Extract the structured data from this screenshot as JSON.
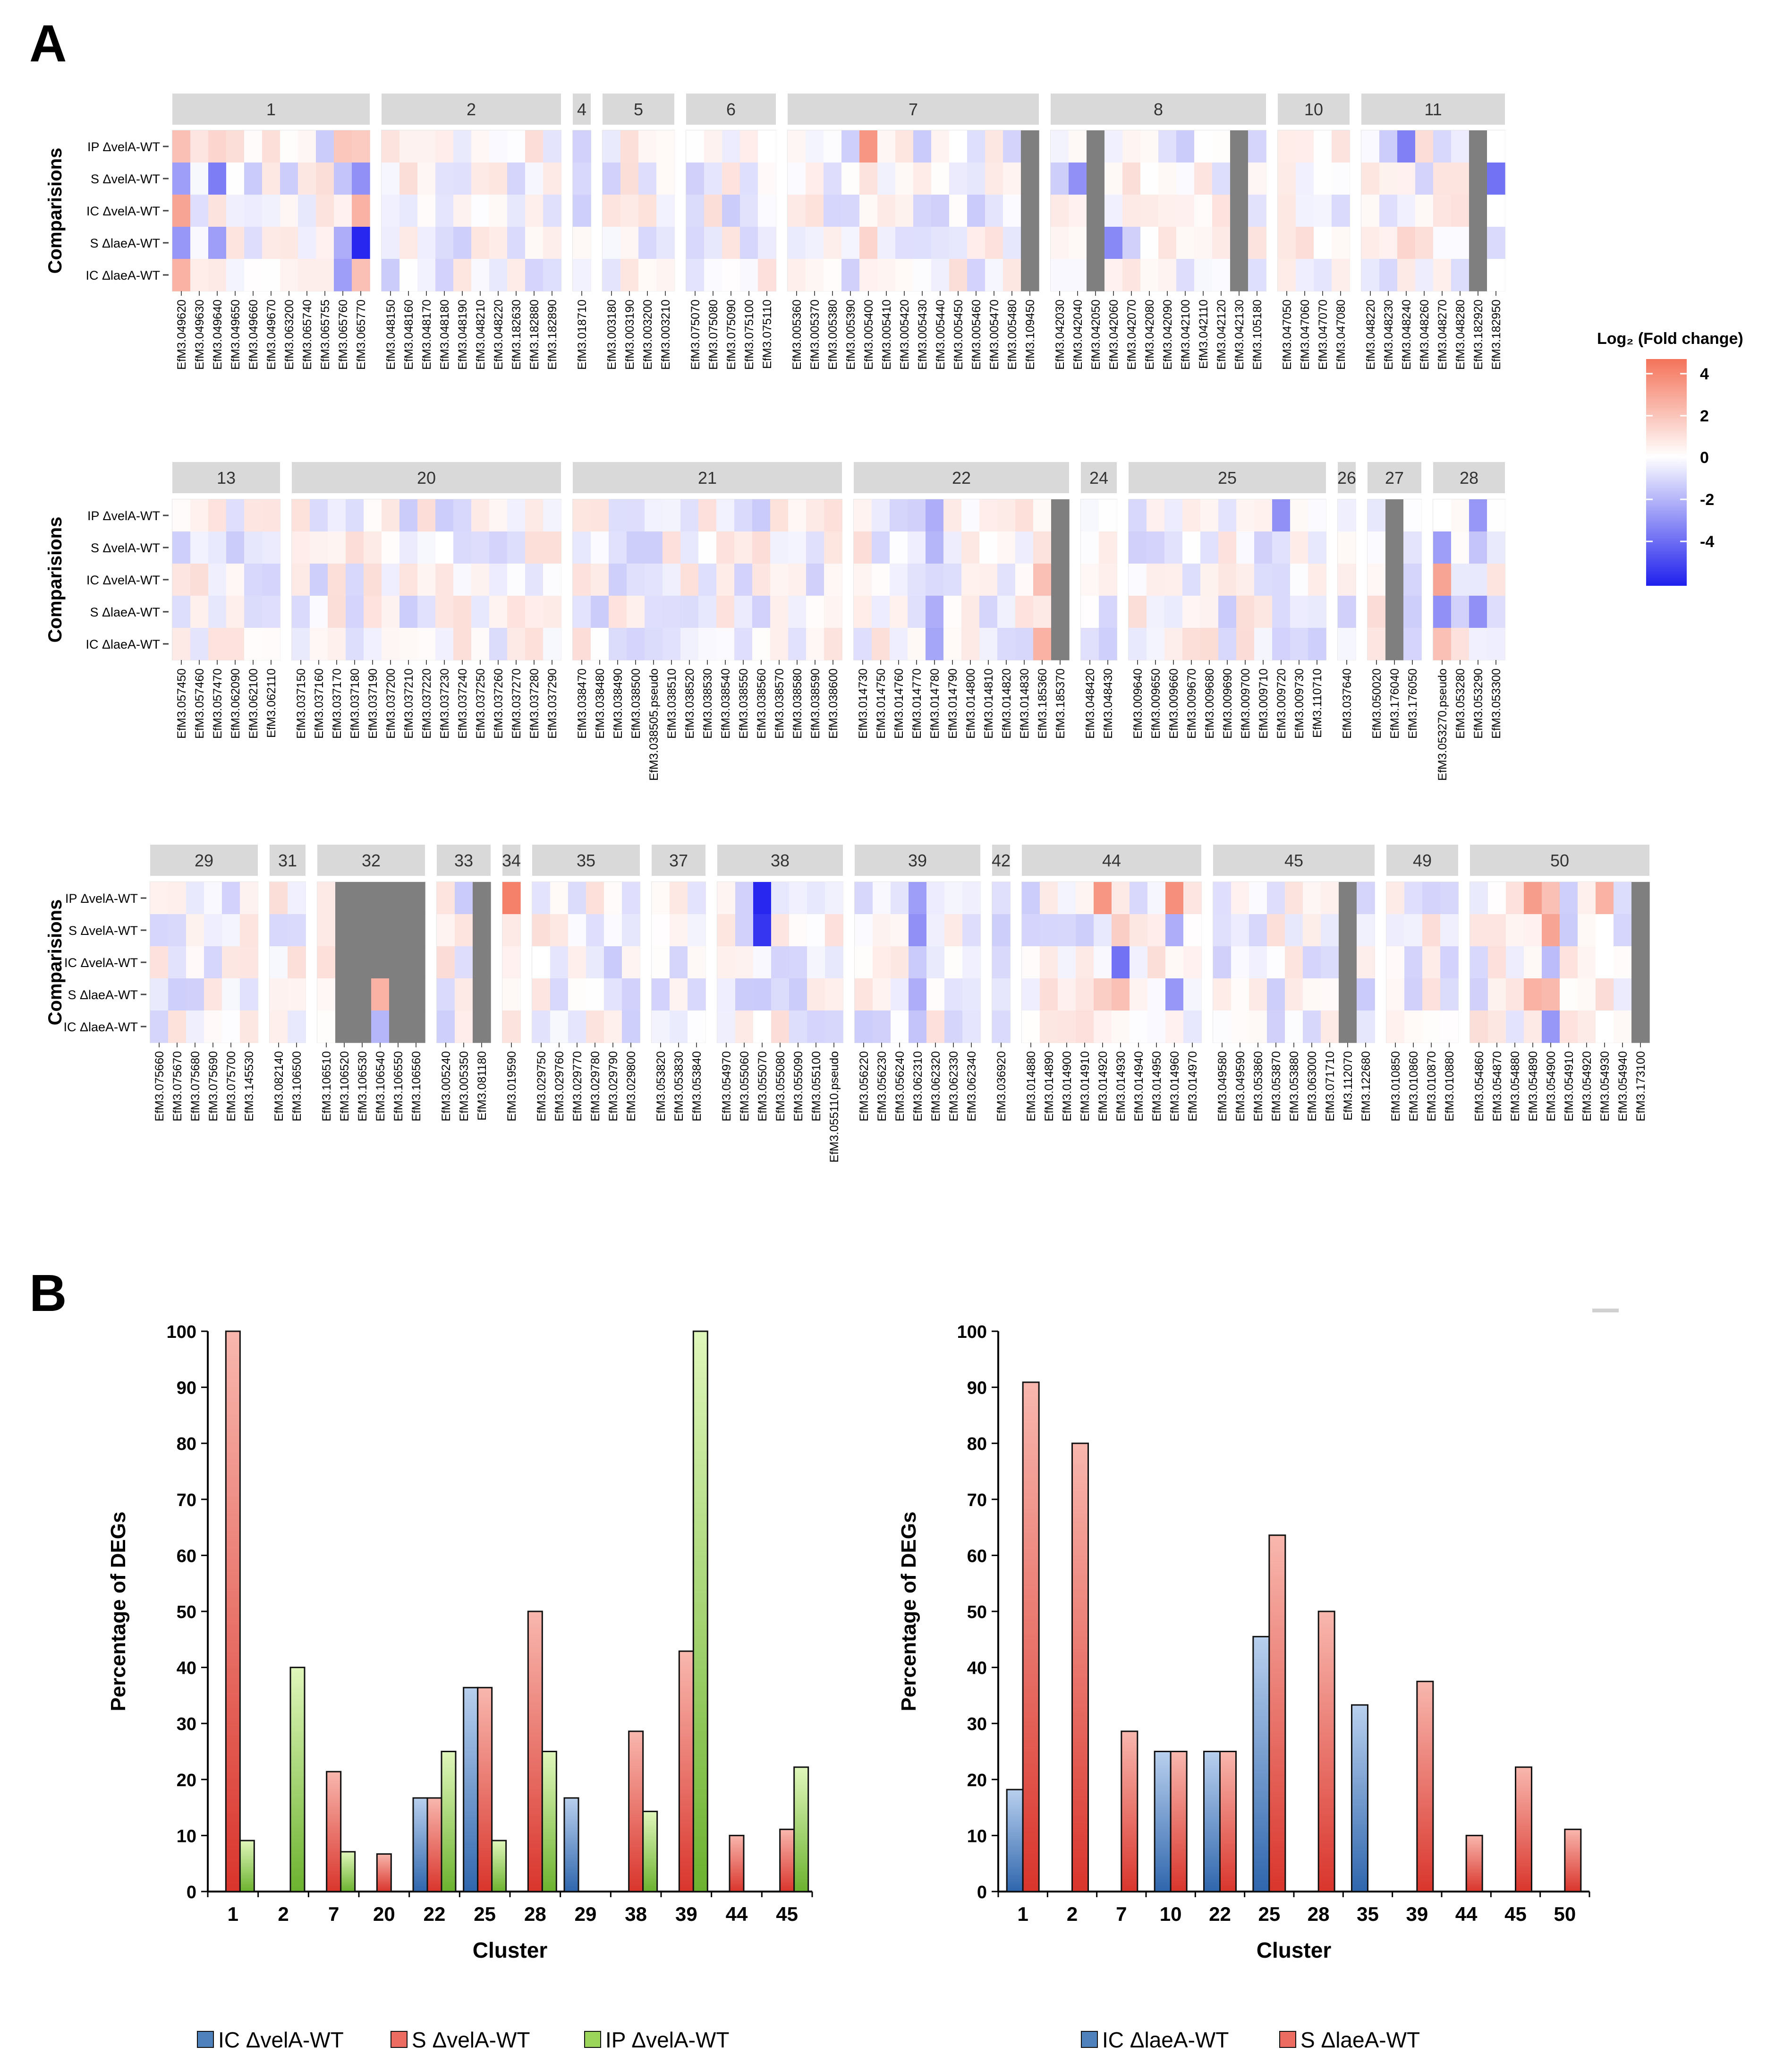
{
  "panel_labels": {
    "a": "A",
    "b": "B"
  },
  "colors": {
    "strip_bg": "#d9d9d9",
    "na": "#7f7f7f",
    "high": "#f4735a",
    "mid": "#ffffff",
    "low": "#2020ee",
    "ic": "#4f81bd",
    "s": "#ec6c62",
    "ip": "#9bd65a"
  },
  "heatmap": {
    "y_title": "Comparisions",
    "rows": [
      "IP ΔvelA-WT",
      "S ΔvelA-WT",
      "IC ΔvelA-WT",
      "S ΔlaeA-WT",
      "IC ΔlaeA-WT"
    ],
    "legend": {
      "title": "Log₂ (Fold change)",
      "ticks": [
        "4",
        "2",
        "0",
        "-2",
        "-4"
      ],
      "range": [
        -6,
        4.5
      ]
    },
    "rows_groups": [
      [
        {
          "id": "1",
          "genes": [
            "EfM3.049620",
            "EfM3.049630",
            "EfM3.049640",
            "EfM3.049650",
            "EfM3.049660",
            "EfM3.049670",
            "EfM3.063200",
            "EfM3.065740",
            "EfM3.065755",
            "EfM3.065760",
            "EfM3.065770"
          ]
        },
        {
          "id": "2",
          "genes": [
            "EfM3.048150",
            "EfM3.048160",
            "EfM3.048170",
            "EfM3.048180",
            "EfM3.048190",
            "EfM3.048210",
            "EfM3.048220",
            "EfM3.182630",
            "EfM3.182880",
            "EfM3.182890"
          ]
        },
        {
          "id": "4",
          "genes": [
            "EfM3.018710"
          ]
        },
        {
          "id": "5",
          "genes": [
            "EfM3.003180",
            "EfM3.003190",
            "EfM3.003200",
            "EfM3.003210"
          ]
        },
        {
          "id": "6",
          "genes": [
            "EfM3.075070",
            "EfM3.075080",
            "EfM3.075090",
            "EfM3.075100",
            "EfM3.075110"
          ]
        },
        {
          "id": "7",
          "genes": [
            "EfM3.005360",
            "EfM3.005370",
            "EfM3.005380",
            "EfM3.005390",
            "EfM3.005400",
            "EfM3.005410",
            "EfM3.005420",
            "EfM3.005430",
            "EfM3.005440",
            "EfM3.005450",
            "EfM3.005460",
            "EfM3.005470",
            "EfM3.005480",
            "EfM3.109450"
          ]
        },
        {
          "id": "8",
          "genes": [
            "EfM3.042030",
            "EfM3.042040",
            "EfM3.042050",
            "EfM3.042060",
            "EfM3.042070",
            "EfM3.042080",
            "EfM3.042090",
            "EfM3.042100",
            "EfM3.042110",
            "EfM3.042120",
            "EfM3.042130",
            "EfM3.105180"
          ]
        },
        {
          "id": "10",
          "genes": [
            "EfM3.047050",
            "EfM3.047060",
            "EfM3.047070",
            "EfM3.047080"
          ]
        },
        {
          "id": "11",
          "genes": [
            "EfM3.048220",
            "EfM3.048230",
            "EfM3.048240",
            "EfM3.048260",
            "EfM3.048270",
            "EfM3.048280",
            "EfM3.182920",
            "EfM3.182950"
          ]
        }
      ],
      [
        {
          "id": "13",
          "genes": [
            "EfM3.057450",
            "EfM3.057460",
            "EfM3.057470",
            "EfM3.062090",
            "EfM3.062100",
            "EfM3.062110"
          ]
        },
        {
          "id": "20",
          "genes": [
            "EfM3.037150",
            "EfM3.037160",
            "EfM3.037170",
            "EfM3.037180",
            "EfM3.037190",
            "EfM3.037200",
            "EfM3.037210",
            "EfM3.037220",
            "EfM3.037230",
            "EfM3.037240",
            "EfM3.037250",
            "EfM3.037260",
            "EfM3.037270",
            "EfM3.037280",
            "EfM3.037290"
          ]
        },
        {
          "id": "21",
          "genes": [
            "EfM3.038470",
            "EfM3.038480",
            "EfM3.038490",
            "EfM3.038500",
            "EfM3.038505.pseudo",
            "EfM3.038510",
            "EfM3.038520",
            "EfM3.038530",
            "EfM3.038540",
            "EfM3.038550",
            "EfM3.038560",
            "EfM3.038570",
            "EfM3.038580",
            "EfM3.038590",
            "EfM3.038600"
          ]
        },
        {
          "id": "22",
          "genes": [
            "EfM3.014730",
            "EfM3.014750",
            "EfM3.014760",
            "EfM3.014770",
            "EfM3.014780",
            "EfM3.014790",
            "EfM3.014800",
            "EfM3.014810",
            "EfM3.014820",
            "EfM3.014830",
            "EfM3.185360",
            "EfM3.185370"
          ]
        },
        {
          "id": "24",
          "genes": [
            "EfM3.048420",
            "EfM3.048430"
          ]
        },
        {
          "id": "25",
          "genes": [
            "EfM3.009640",
            "EfM3.009650",
            "EfM3.009660",
            "EfM3.009670",
            "EfM3.009680",
            "EfM3.009690",
            "EfM3.009700",
            "EfM3.009710",
            "EfM3.009720",
            "EfM3.009730",
            "EfM3.110710"
          ]
        },
        {
          "id": "26",
          "genes": [
            "EfM3.037640"
          ]
        },
        {
          "id": "27",
          "genes": [
            "EfM3.050020",
            "EfM3.176040",
            "EfM3.176050"
          ]
        },
        {
          "id": "28",
          "genes": [
            "EfM3.053270.pseudo",
            "EfM3.053280",
            "EfM3.053290",
            "EfM3.053300"
          ]
        }
      ],
      [
        {
          "id": "29",
          "genes": [
            "EfM3.075660",
            "EfM3.075670",
            "EfM3.075680",
            "EfM3.075690",
            "EfM3.075700",
            "EfM3.145530"
          ]
        },
        {
          "id": "31",
          "genes": [
            "EfM3.082140",
            "EfM3.106500"
          ]
        },
        {
          "id": "32",
          "genes": [
            "EfM3.106510",
            "EfM3.106520",
            "EfM3.106530",
            "EfM3.106540",
            "EfM3.106550",
            "EfM3.106560"
          ]
        },
        {
          "id": "33",
          "genes": [
            "EfM3.005240",
            "EfM3.005350",
            "EfM3.081180"
          ]
        },
        {
          "id": "34",
          "genes": [
            "EfM3.019590"
          ]
        },
        {
          "id": "35",
          "genes": [
            "EfM3.029750",
            "EfM3.029760",
            "EfM3.029770",
            "EfM3.029780",
            "EfM3.029790",
            "EfM3.029800"
          ]
        },
        {
          "id": "37",
          "genes": [
            "EfM3.053820",
            "EfM3.053830",
            "EfM3.053840"
          ]
        },
        {
          "id": "38",
          "genes": [
            "EfM3.054970",
            "EfM3.055060",
            "EfM3.055070",
            "EfM3.055080",
            "EfM3.055090",
            "EfM3.055100",
            "EfM3.055110.pseudo"
          ]
        },
        {
          "id": "39",
          "genes": [
            "EfM3.056220",
            "EfM3.056230",
            "EfM3.056240",
            "EfM3.062310",
            "EfM3.062320",
            "EfM3.062330",
            "EfM3.062340"
          ]
        },
        {
          "id": "42",
          "genes": [
            "EfM3.036920"
          ]
        },
        {
          "id": "44",
          "genes": [
            "EfM3.014880",
            "EfM3.014890",
            "EfM3.014900",
            "EfM3.014910",
            "EfM3.014920",
            "EfM3.014930",
            "EfM3.014940",
            "EfM3.014950",
            "EfM3.014960",
            "EfM3.014970"
          ]
        },
        {
          "id": "45",
          "genes": [
            "EfM3.049580",
            "EfM3.049590",
            "EfM3.053860",
            "EfM3.053870",
            "EfM3.053880",
            "EfM3.063000",
            "EfM3.071710",
            "EfM3.112070",
            "EfM3.122680"
          ]
        },
        {
          "id": "49",
          "genes": [
            "EfM3.010850",
            "EfM3.010860",
            "EfM3.010870",
            "EfM3.010880"
          ]
        },
        {
          "id": "50",
          "genes": [
            "EfM3.054860",
            "EfM3.054870",
            "EfM3.054880",
            "EfM3.054890",
            "EfM3.054900",
            "EfM3.054910",
            "EfM3.054920",
            "EfM3.054930",
            "EfM3.054940",
            "EfM3.173100"
          ]
        }
      ]
    ],
    "missing_cells": [
      {
        "gene": "EfM3.109450",
        "rows": "all"
      },
      {
        "gene": "EfM3.042050",
        "rows": "all"
      },
      {
        "gene": "EfM3.042130",
        "rows": "all"
      },
      {
        "gene": "EfM3.182920",
        "rows": "all"
      },
      {
        "gene": "EfM3.185370",
        "rows": "all"
      },
      {
        "gene": "EfM3.176040",
        "rows": "all"
      },
      {
        "gene": "EfM3.106520",
        "rows": "all"
      },
      {
        "gene": "EfM3.106530",
        "rows": "all"
      },
      {
        "gene": "EfM3.106550",
        "rows": "all"
      },
      {
        "gene": "EfM3.106560",
        "rows": "all"
      },
      {
        "gene": "EfM3.106540",
        "rows": [
          0,
          1,
          2
        ]
      },
      {
        "gene": "EfM3.081180",
        "rows": "all"
      },
      {
        "gene": "EfM3.112070",
        "rows": "all"
      },
      {
        "gene": "EfM3.173100",
        "rows": "all"
      }
    ],
    "highlight_values": [
      {
        "gene": "EfM3.049620",
        "values": [
          1.8,
          -2.6,
          2.6,
          -2.8,
          2.2
        ]
      },
      {
        "gene": "EfM3.049640",
        "values": [
          1.2,
          -3.5,
          0.8,
          -2.6,
          0.6
        ]
      },
      {
        "gene": "EfM3.065760",
        "values": [
          1.6,
          -1.6,
          0.4,
          -2.2,
          -2.6
        ]
      },
      {
        "gene": "EfM3.065770",
        "values": [
          1.5,
          -3.0,
          2.2,
          -5.8,
          1.8
        ]
      },
      {
        "gene": "EfM3.005400",
        "values": [
          3.0,
          0.8,
          0.2,
          1.2,
          0.4
        ]
      },
      {
        "gene": "EfM3.042040",
        "values": [
          0.2,
          -3.0,
          0.4,
          0.2,
          -0.2
        ]
      },
      {
        "gene": "EfM3.042060",
        "values": [
          -0.4,
          0.2,
          -0.4,
          -3.2,
          0.4
        ]
      },
      {
        "gene": "EfM3.048240",
        "values": [
          -3.4,
          0.4,
          -0.4,
          1.2,
          0.6
        ]
      },
      {
        "gene": "EfM3.182950",
        "values": [
          0,
          -3.8,
          0,
          -1.0,
          0
        ]
      },
      {
        "gene": "EfM3.014780",
        "values": [
          -2.2,
          -2.0,
          -1.0,
          -2.2,
          -2.4
        ]
      },
      {
        "gene": "EfM3.185360",
        "values": [
          0.2,
          0.8,
          1.8,
          0.6,
          2.2
        ]
      },
      {
        "gene": "EfM3.009720",
        "values": [
          -3.0,
          -0.8,
          -1.0,
          -1.0,
          -1.2
        ]
      },
      {
        "gene": "EfM3.053270.pseudo",
        "values": [
          0,
          -2.6,
          2.6,
          -3.0,
          1.8
        ]
      },
      {
        "gene": "EfM3.053290",
        "values": [
          -2.8,
          -1.6,
          -0.6,
          -3.0,
          -0.4
        ]
      },
      {
        "gene": "EfM3.106540",
        "values": [
          null,
          null,
          null,
          2.2,
          -2.0
        ]
      },
      {
        "gene": "EfM3.019590",
        "values": [
          3.6,
          0.6,
          0.4,
          0.2,
          0.8
        ]
      },
      {
        "gene": "EfM3.055070",
        "values": [
          -5.8,
          -5.4,
          -0.2,
          -1.4,
          0.0
        ]
      },
      {
        "gene": "EfM3.062310",
        "values": [
          -2.6,
          -3.0,
          -1.4,
          -2.2,
          -1.6
        ]
      },
      {
        "gene": "EfM3.014920",
        "values": [
          3.0,
          -0.6,
          -0.2,
          1.4,
          0.4
        ]
      },
      {
        "gene": "EfM3.014930",
        "values": [
          0.6,
          1.4,
          -3.8,
          1.8,
          0.2
        ]
      },
      {
        "gene": "EfM3.014960",
        "values": [
          3.2,
          -2.2,
          0.2,
          -2.8,
          0.4
        ]
      },
      {
        "gene": "EfM3.054890",
        "values": [
          2.8,
          0.4,
          0.2,
          2.2,
          0.6
        ]
      },
      {
        "gene": "EfM3.054900",
        "values": [
          1.8,
          2.6,
          -1.8,
          2.0,
          -2.8
        ]
      },
      {
        "gene": "EfM3.054930",
        "values": [
          2.2,
          0,
          0,
          1.0,
          0
        ]
      }
    ]
  },
  "chart_data": [
    {
      "type": "bar",
      "title": "",
      "xlabel": "Cluster",
      "ylabel": "Percentage of DEGs",
      "ylim": [
        0,
        100
      ],
      "yticks": [
        0,
        10,
        20,
        30,
        40,
        50,
        60,
        70,
        80,
        90,
        100
      ],
      "categories": [
        "1",
        "2",
        "7",
        "20",
        "22",
        "25",
        "28",
        "29",
        "38",
        "39",
        "44",
        "45"
      ],
      "series": [
        {
          "name": "IC ΔvelA-WT",
          "color_key": "ic",
          "values": [
            0,
            0,
            0,
            0,
            16.7,
            36.4,
            0,
            16.7,
            0,
            0,
            0,
            0
          ]
        },
        {
          "name": "S ΔvelA-WT",
          "color_key": "s",
          "values": [
            100,
            0,
            21.4,
            6.7,
            16.7,
            36.4,
            50,
            0,
            28.6,
            42.9,
            10,
            11.1
          ]
        },
        {
          "name": "IP ΔvelA-WT",
          "color_key": "ip",
          "values": [
            9.1,
            40,
            7.1,
            0,
            25,
            9.1,
            25,
            0,
            14.3,
            100,
            0,
            22.2
          ]
        }
      ],
      "legend": "bottom"
    },
    {
      "type": "bar",
      "title": "",
      "xlabel": "Cluster",
      "ylabel": "Percentage of DEGs",
      "ylim": [
        0,
        100
      ],
      "yticks": [
        0,
        10,
        20,
        30,
        40,
        50,
        60,
        70,
        80,
        90,
        100
      ],
      "categories": [
        "1",
        "2",
        "7",
        "10",
        "22",
        "25",
        "28",
        "35",
        "39",
        "44",
        "45",
        "50"
      ],
      "series": [
        {
          "name": "IC ΔlaeA-WT",
          "color_key": "ic",
          "values": [
            18.2,
            0,
            0,
            25,
            25,
            45.5,
            0,
            33.3,
            0,
            0,
            0,
            0
          ]
        },
        {
          "name": "S ΔlaeA-WT",
          "color_key": "s",
          "values": [
            90.9,
            80,
            28.6,
            25,
            25,
            63.6,
            50,
            0,
            37.5,
            10,
            22.2,
            11.1
          ]
        }
      ],
      "legend": "bottom"
    }
  ]
}
